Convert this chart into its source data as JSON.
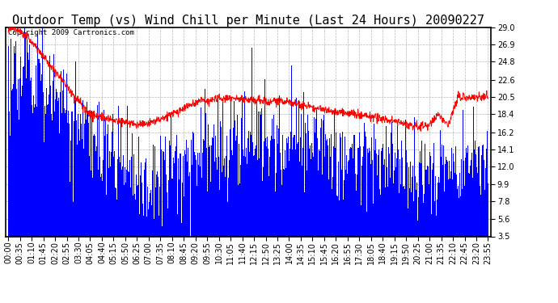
{
  "title": "Outdoor Temp (vs) Wind Chill per Minute (Last 24 Hours) 20090227",
  "copyright_text": "Copyright 2009 Cartronics.com",
  "yticks": [
    3.5,
    5.6,
    7.8,
    9.9,
    12.0,
    14.1,
    16.2,
    18.4,
    20.5,
    22.6,
    24.8,
    26.9,
    29.0
  ],
  "ylim": [
    3.5,
    29.0
  ],
  "xtick_labels": [
    "00:00",
    "00:35",
    "01:10",
    "01:45",
    "02:20",
    "02:55",
    "03:30",
    "04:05",
    "04:40",
    "05:15",
    "05:50",
    "06:25",
    "07:00",
    "07:35",
    "08:10",
    "08:45",
    "09:20",
    "09:55",
    "10:30",
    "11:05",
    "11:40",
    "12:15",
    "12:50",
    "13:25",
    "14:00",
    "14:35",
    "15:10",
    "15:45",
    "16:20",
    "16:55",
    "17:30",
    "18:05",
    "18:40",
    "19:15",
    "19:50",
    "20:25",
    "21:00",
    "21:35",
    "22:10",
    "22:45",
    "23:20",
    "23:55"
  ],
  "background_color": "#ffffff",
  "plot_bg_color": "#ffffff",
  "bar_color": "#0000ff",
  "line_color": "#ff0000",
  "grid_color": "#888888",
  "title_fontsize": 11,
  "tick_fontsize": 7,
  "copyright_fontsize": 6.5
}
